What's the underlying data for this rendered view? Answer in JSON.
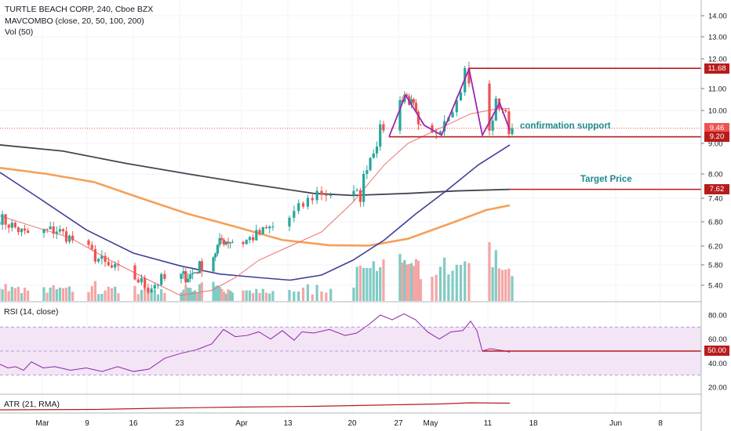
{
  "header": {
    "symbol_line": "TURTLE BEACH CORP, 240, Cboe BZX",
    "indicator_line": "MAVCOMBO (close, 20, 50, 100, 200)",
    "volume_line": "Vol (50)"
  },
  "rsi_pane": {
    "label": "RSI (14, close)"
  },
  "atr_pane": {
    "label": "ATR (21, RMA)"
  },
  "price_axis": {
    "ticks": [
      "14.00",
      "13.00",
      "12.00",
      "11.00",
      "10.00",
      "9.00",
      "8.00",
      "7.40",
      "6.80",
      "6.20",
      "5.80",
      "5.40"
    ],
    "values": [
      14.0,
      13.0,
      12.0,
      11.0,
      10.0,
      9.0,
      8.0,
      7.4,
      6.8,
      6.2,
      5.8,
      5.4
    ]
  },
  "rsi_axis": {
    "ticks": [
      "80.00",
      "60.00",
      "40.00",
      "20.00"
    ],
    "values": [
      80,
      60,
      40,
      20
    ]
  },
  "time_axis": {
    "labels": [
      "Mar",
      "9",
      "16",
      "23",
      "Apr",
      "13",
      "20",
      "27",
      "May",
      "11",
      "18",
      "Jun",
      "8"
    ]
  },
  "price_tags": [
    {
      "text": "11.68",
      "value": 11.68,
      "color": "#b71c1c"
    },
    {
      "text": "9.46",
      "value": 9.46,
      "color": "#ef5350"
    },
    {
      "text": "9.20",
      "value": 9.2,
      "color": "#b71c1c"
    },
    {
      "text": "7.62",
      "value": 7.62,
      "color": "#b71c1c"
    }
  ],
  "rsi_tag": {
    "text": "50.00",
    "value": 50,
    "color": "#b71c1c"
  },
  "annotations": {
    "confirmation": "confirmation support",
    "target": "Target Price"
  },
  "colors": {
    "up": "#26a69a",
    "down": "#ef5350",
    "volume_up": "#80cbc4",
    "volume_down": "#f4a6a4",
    "ma20": "#f26e6e",
    "ma50": "#3f3f9b",
    "ma100": "#f5a05a",
    "ma200": "#434651",
    "levels": "#b71c1c",
    "pattern": "#9c27b0",
    "rsi": "#8e24aa",
    "rsi_band": "#f3e5f5",
    "atr": "#b71c1c"
  }
}
